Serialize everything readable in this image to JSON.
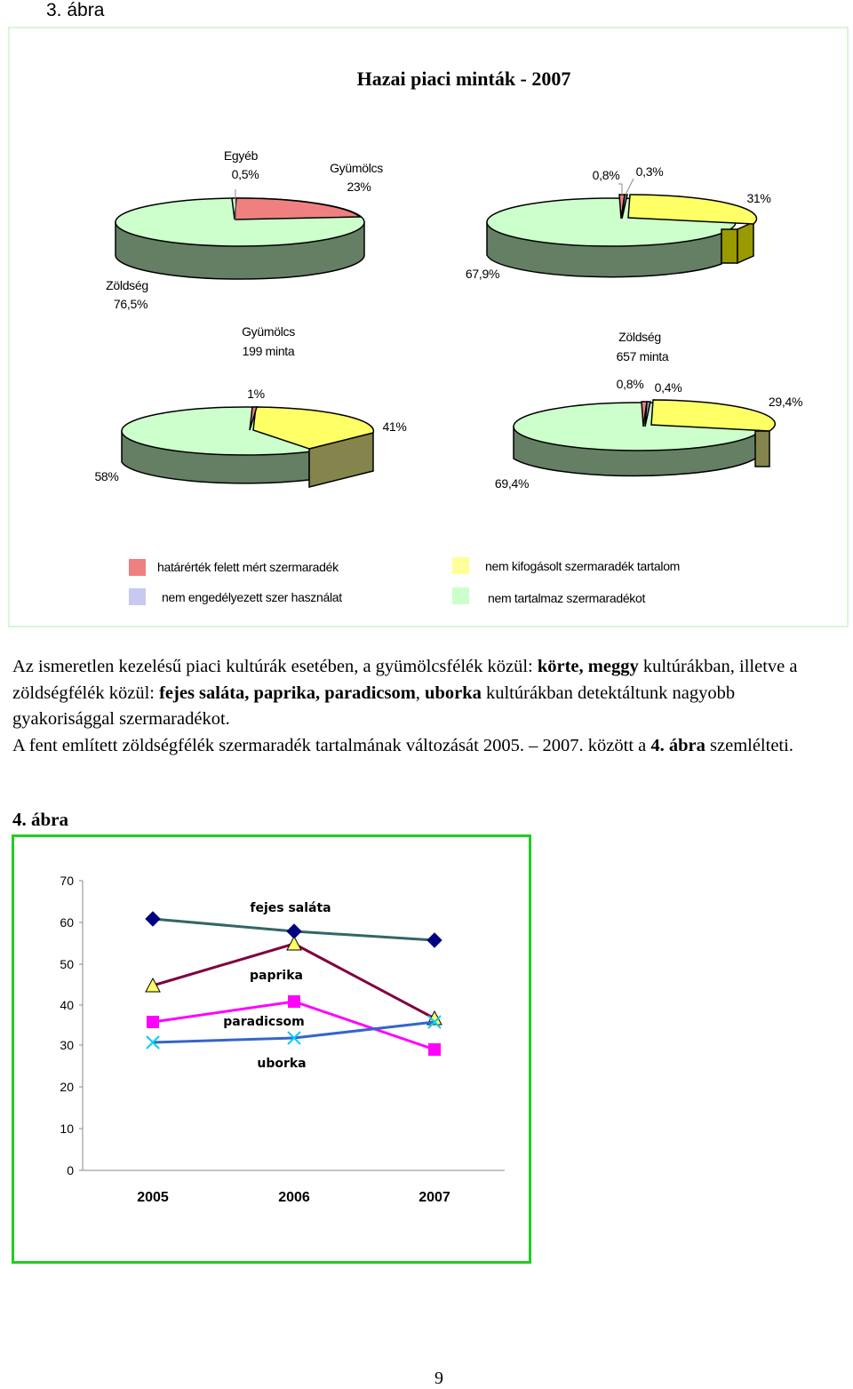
{
  "figure3": {
    "label": "3. ábra",
    "title": "Hazai piaci minták - 2007",
    "colors": {
      "limit_exceeded": "#f08080",
      "unauthorized": "#9999aa",
      "not_objectionable": "#ffff66",
      "no_residue": "#ccffcc",
      "side_green": "#647f64",
      "side_olive": "#999900",
      "side_khaki": "#84844c"
    },
    "pies": [
      {
        "labels": [
          {
            "line1": "Egyéb",
            "line2": "0,5%"
          },
          {
            "line1": "Gyümölcs",
            "line2": "23%"
          },
          {
            "line1": "Zöldség",
            "line2": "76,5%"
          }
        ]
      },
      {
        "labels": [
          {
            "line1": "0,8%"
          },
          {
            "line1": "0,3%"
          },
          {
            "line1": "31%"
          },
          {
            "line1": "67,9%"
          }
        ]
      },
      {
        "title_line1": "Gyümölcs",
        "title_line2": "199 minta",
        "labels": [
          {
            "line1": "1%"
          },
          {
            "line1": "41%"
          },
          {
            "line1": "58%"
          }
        ]
      },
      {
        "title_line1": "Zöldség",
        "title_line2": "657 minta",
        "labels": [
          {
            "line1": "0,8%"
          },
          {
            "line1": "0,4%"
          },
          {
            "line1": "29,4%"
          },
          {
            "line1": "69,4%"
          }
        ]
      }
    ],
    "legend": [
      {
        "label": "határérték felett mért szermaradék",
        "color": "#f08080"
      },
      {
        "label": "nem engedélyezett szer használat",
        "color": "#c8c8f0"
      },
      {
        "label": "nem kifogásolt szermaradék tartalom",
        "color": "#ffff99"
      },
      {
        "label": "nem tartalmaz szermaradékot",
        "color": "#ccffcc"
      }
    ]
  },
  "paragraph": {
    "p1_a": "Az ismeretlen kezelésű piaci kultúrák esetében, a gyümölcsfélék közül: ",
    "p1_b": "körte, meggy",
    "p1_c": " kultúrákban, illetve a zöldségfélék közül: ",
    "p1_d": "fejes saláta, paprika, paradicsom",
    "p1_e": ", ",
    "p1_f": "uborka",
    "p1_g": " kultúrákban detektáltunk nagyobb gyakorisággal szermaradékot.",
    "p2_a": "A fent említett zöldségfélék szermaradék tartalmának változását 2005. – 2007. között a ",
    "p2_b": "4. ábra",
    "p2_c": " szemlélteti."
  },
  "figure4": {
    "label": "4. ábra"
  },
  "chart_data": [
    {
      "type": "pie",
      "title": "Hazai piaci minták - 2007",
      "slices": [
        {
          "label": "Egyéb",
          "value": 0.5
        },
        {
          "label": "Gyümölcs",
          "value": 23
        },
        {
          "label": "Zöldség",
          "value": 76.5
        }
      ]
    },
    {
      "type": "pie",
      "slices": [
        {
          "label": "határérték felett mért szermaradék",
          "value": 0.8
        },
        {
          "label": "nem engedélyezett szer használat",
          "value": 0.3
        },
        {
          "label": "nem kifogásolt szermaradék tartalom",
          "value": 31
        },
        {
          "label": "nem tartalmaz szermaradékot",
          "value": 67.9
        }
      ]
    },
    {
      "type": "pie",
      "title": "Gyümölcs 199 minta",
      "slices": [
        {
          "label": "határérték felett mért szermaradék",
          "value": 1
        },
        {
          "label": "nem kifogásolt szermaradék tartalom",
          "value": 41
        },
        {
          "label": "nem tartalmaz szermaradékot",
          "value": 58
        }
      ]
    },
    {
      "type": "pie",
      "title": "Zöldség 657 minta",
      "slices": [
        {
          "label": "határérték felett mért szermaradék",
          "value": 0.8
        },
        {
          "label": "nem engedélyezett szer használat",
          "value": 0.4
        },
        {
          "label": "nem kifogásolt szermaradék tartalom",
          "value": 29.4
        },
        {
          "label": "nem tartalmaz szermaradékot",
          "value": 69.4
        }
      ]
    },
    {
      "type": "line",
      "categories": [
        "2005",
        "2006",
        "2007"
      ],
      "ylim": [
        0,
        70
      ],
      "yticks": [
        "0",
        "10",
        "20",
        "30",
        "40",
        "50",
        "60",
        "70"
      ],
      "grid": false,
      "series": [
        {
          "name": "fejes saláta",
          "values": [
            61,
            58,
            56
          ],
          "color": "#336666",
          "marker": "#000080",
          "marker_shape": "diamond"
        },
        {
          "name": "paprika",
          "values": [
            45,
            55,
            37
          ],
          "color": "#800040",
          "marker": "#ffff66",
          "marker_shape": "triangle"
        },
        {
          "name": "paradicsom",
          "values": [
            36,
            41,
            29
          ],
          "color": "#ff00ff",
          "marker": "#ff00ff",
          "marker_shape": "square"
        },
        {
          "name": "uborka",
          "values": [
            31,
            32,
            36
          ],
          "color": "#3366cc",
          "marker": "#00ccff",
          "marker_shape": "x"
        }
      ]
    }
  ],
  "page_number": "9"
}
